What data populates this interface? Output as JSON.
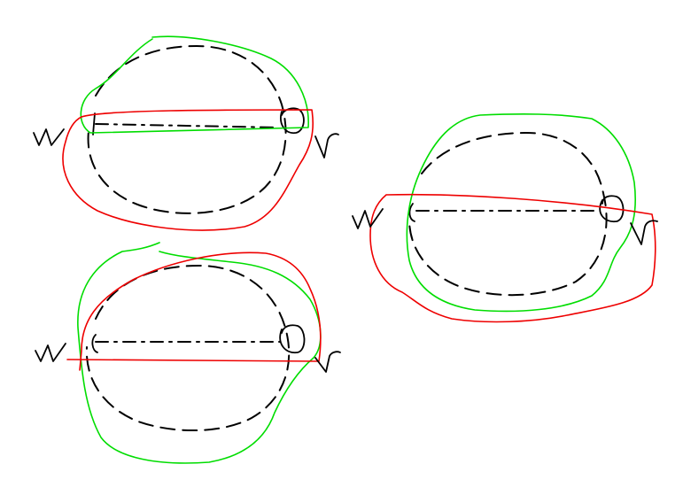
{
  "colors": {
    "background": "#ffffff",
    "ink": "#000000",
    "green": "#00dd00",
    "red": "#ee0000"
  },
  "sketches": [
    {
      "name": "sketch-top-left",
      "pencil_label": "w",
      "end_label": "r"
    },
    {
      "name": "sketch-bottom-left",
      "pencil_label": "w",
      "end_label": "r"
    },
    {
      "name": "sketch-right",
      "pencil_label": "w",
      "end_label": "r"
    }
  ]
}
